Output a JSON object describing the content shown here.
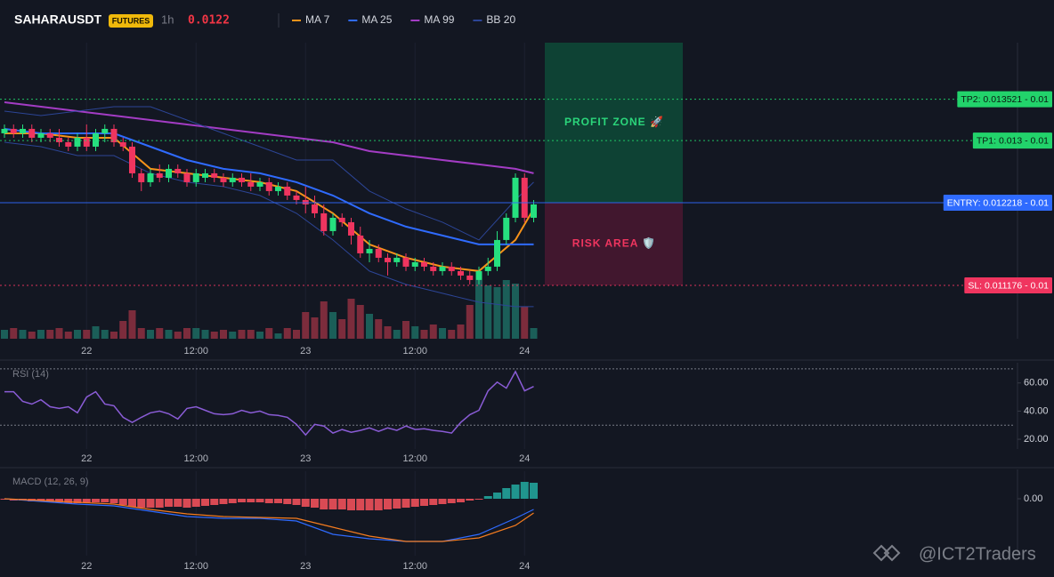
{
  "header": {
    "symbol": "SAHARAUSDT",
    "market": "FUTURES",
    "interval": "1h",
    "price": 0.0122
  },
  "watermark": "@ICT2Traders",
  "chart_data": [
    {
      "type": "candlestick",
      "categories": [
        null,
        null,
        null,
        null,
        null,
        null,
        null,
        null,
        null,
        "22",
        null,
        null,
        null,
        null,
        null,
        null,
        null,
        null,
        null,
        null,
        null,
        "12:00",
        null,
        null,
        null,
        null,
        null,
        null,
        null,
        null,
        null,
        null,
        null,
        "23",
        null,
        null,
        null,
        null,
        null,
        null,
        null,
        null,
        null,
        null,
        null,
        "12:00",
        null,
        null,
        null,
        null,
        null,
        null,
        null,
        null,
        null,
        null,
        null,
        "24",
        null
      ],
      "open": [
        0.013092,
        0.013148,
        0.013092,
        0.013148,
        0.013036,
        0.013092,
        0.013036,
        0.01298,
        0.012924,
        0.013036,
        0.012924,
        0.013092,
        0.013148,
        0.01298,
        0.012924,
        0.012588,
        0.012476,
        0.012588,
        0.012532,
        0.012644,
        0.012588,
        0.012476,
        0.012532,
        0.012588,
        0.012532,
        0.012476,
        0.012532,
        0.012476,
        0.01242,
        0.012476,
        0.012364,
        0.01242,
        0.012308,
        0.012252,
        0.012196,
        0.012084,
        0.01186,
        0.012028,
        0.011972,
        0.011804,
        0.01158,
        0.011636,
        0.011524,
        0.011468,
        0.011524,
        0.011412,
        0.011468,
        0.011412,
        0.011356,
        0.011412,
        0.011356,
        0.0113,
        0.011244,
        0.011356,
        0.011412,
        0.011748,
        0.012028,
        0.012532,
        0.012028
      ],
      "high": [
        0.013204,
        0.013204,
        0.013204,
        0.013204,
        0.013148,
        0.013148,
        0.013148,
        0.013036,
        0.013092,
        0.013204,
        0.013148,
        0.013204,
        0.013204,
        0.013036,
        0.01298,
        0.012644,
        0.012644,
        0.0127,
        0.0127,
        0.0127,
        0.012644,
        0.012644,
        0.012644,
        0.012644,
        0.012588,
        0.012588,
        0.012588,
        0.012588,
        0.012532,
        0.012532,
        0.012476,
        0.012476,
        0.012364,
        0.01242,
        0.012308,
        0.012196,
        0.012084,
        0.012084,
        0.012028,
        0.011916,
        0.011748,
        0.011692,
        0.01158,
        0.01158,
        0.01158,
        0.011524,
        0.011524,
        0.011468,
        0.011468,
        0.011468,
        0.011412,
        0.011356,
        0.011412,
        0.011524,
        0.01186,
        0.012084,
        0.012588,
        0.012588,
        0.012252
      ],
      "low": [
        0.013036,
        0.013036,
        0.013036,
        0.01298,
        0.01298,
        0.01298,
        0.012924,
        0.012868,
        0.012868,
        0.012868,
        0.012868,
        0.01298,
        0.012924,
        0.012868,
        0.012532,
        0.012364,
        0.01242,
        0.012476,
        0.012476,
        0.012532,
        0.01242,
        0.01242,
        0.012476,
        0.012476,
        0.01242,
        0.01242,
        0.01242,
        0.012364,
        0.012364,
        0.012308,
        0.012308,
        0.012252,
        0.012196,
        0.012084,
        0.012028,
        0.011804,
        0.011804,
        0.011916,
        0.011692,
        0.011524,
        0.011468,
        0.011468,
        0.0113,
        0.011412,
        0.011356,
        0.011356,
        0.011356,
        0.0113,
        0.0113,
        0.0113,
        0.011244,
        0.011188,
        0.011188,
        0.0113,
        0.011356,
        0.011692,
        0.011972,
        0.011972,
        0.011972
      ],
      "close": [
        0.013148,
        0.013092,
        0.013148,
        0.013036,
        0.013092,
        0.013036,
        0.01298,
        0.012924,
        0.013036,
        0.012924,
        0.013092,
        0.013148,
        0.01298,
        0.012924,
        0.012588,
        0.012476,
        0.012588,
        0.012532,
        0.012644,
        0.012588,
        0.012476,
        0.012588,
        0.012588,
        0.012532,
        0.012476,
        0.012532,
        0.012476,
        0.01242,
        0.012476,
        0.012364,
        0.01242,
        0.012308,
        0.012252,
        0.012196,
        0.012084,
        0.01186,
        0.012028,
        0.011972,
        0.011804,
        0.01158,
        0.011636,
        0.011524,
        0.011468,
        0.011524,
        0.011412,
        0.011468,
        0.011412,
        0.011356,
        0.011412,
        0.011356,
        0.0113,
        0.011244,
        0.011356,
        0.011412,
        0.011748,
        0.012028,
        0.012532,
        0.012028,
        0.012196
      ],
      "volume": [
        10,
        12,
        10,
        8,
        10,
        10,
        12,
        8,
        10,
        10,
        14,
        10,
        8,
        20,
        32,
        12,
        10,
        12,
        10,
        8,
        12,
        12,
        10,
        8,
        10,
        8,
        10,
        10,
        8,
        12,
        6,
        12,
        10,
        30,
        24,
        42,
        30,
        22,
        45,
        38,
        28,
        22,
        14,
        10,
        20,
        14,
        10,
        16,
        12,
        10,
        16,
        38,
        66,
        60,
        58,
        66,
        62,
        36,
        12
      ],
      "up_color": "#26e07f",
      "down_color": "#f0355f",
      "volume_up_color": "#1b5e58",
      "volume_down_color": "#7c2c3c",
      "ylim": [
        0.010504,
        0.014234
      ],
      "series": [
        {
          "name": "MA 7",
          "color": "#f7931a",
          "x": [
            0,
            4,
            8,
            12,
            16,
            20,
            24,
            28,
            32,
            36,
            40,
            44,
            48,
            52,
            56,
            58
          ],
          "values": [
            0.013092,
            0.013092,
            0.013036,
            0.013036,
            0.012644,
            0.012588,
            0.012532,
            0.012476,
            0.012364,
            0.012084,
            0.011692,
            0.011524,
            0.011412,
            0.011356,
            0.011748,
            0.01214
          ]
        },
        {
          "name": "MA 25",
          "color": "#2f6bff",
          "x": [
            0,
            4,
            8,
            12,
            16,
            20,
            24,
            28,
            32,
            36,
            40,
            44,
            48,
            52,
            56,
            58
          ],
          "values": [
            0.013148,
            0.013092,
            0.013092,
            0.013092,
            0.012924,
            0.012756,
            0.012644,
            0.012588,
            0.012476,
            0.012308,
            0.012084,
            0.011916,
            0.011804,
            0.011692,
            0.011692,
            0.011692
          ]
        },
        {
          "name": "MA 99",
          "color": "#a33cc4",
          "x": [
            0,
            4,
            8,
            12,
            16,
            20,
            24,
            28,
            32,
            36,
            40,
            44,
            48,
            52,
            56,
            58
          ],
          "values": [
            0.013484,
            0.013428,
            0.013372,
            0.013316,
            0.01326,
            0.013204,
            0.013148,
            0.013092,
            0.013036,
            0.01298,
            0.012868,
            0.012812,
            0.012756,
            0.0127,
            0.012644,
            0.012588
          ]
        },
        {
          "name": "BB 20",
          "color": "#2c4596",
          "x": [
            0,
            4,
            8,
            12,
            16,
            20,
            24,
            28,
            32,
            36,
            40,
            44,
            48,
            52,
            56,
            58
          ],
          "values": [
            0.013372,
            0.013316,
            0.013372,
            0.013428,
            0.013428,
            0.01326,
            0.013092,
            0.012924,
            0.012756,
            0.012756,
            0.012364,
            0.01214,
            0.011972,
            0.011748,
            0.012252,
            0.012476
          ],
          "lower": [
            0.01298,
            0.012924,
            0.012812,
            0.012812,
            0.012588,
            0.012476,
            0.01242,
            0.012308,
            0.012084,
            0.011748,
            0.011356,
            0.011188,
            0.011076,
            0.010964,
            0.010908,
            0.010908
          ]
        }
      ],
      "levels": [
        {
          "label": "TP2: 0.013521 - 0.01",
          "value": 0.013521,
          "color": "#22d36b",
          "text_color": "#0b1a12",
          "style": "dotted"
        },
        {
          "label": "TP1: 0.013 - 0.01",
          "value": 0.013,
          "color": "#22d36b",
          "text_color": "#0b1a12",
          "style": "dotted"
        },
        {
          "label": "ENTRY: 0.012218 - 0.01",
          "value": 0.012218,
          "color": "#2f6bff",
          "text_color": "#ffffff",
          "style": "solid"
        },
        {
          "label": "SL: 0.011176 - 0.01",
          "value": 0.011176,
          "color": "#f0355f",
          "text_color": "#ffffff",
          "style": "dotted"
        }
      ],
      "zones": [
        {
          "label": "PROFIT ZONE 🚀",
          "low": 0.012218,
          "high": 0.014234,
          "color": "#0e4a37",
          "text_color": "#2bd67b"
        },
        {
          "label": "RISK AREA 🛡️",
          "low": 0.011176,
          "high": 0.012218,
          "color": "#4a1830",
          "text_color": "#f0355f"
        }
      ]
    },
    {
      "type": "line",
      "title": "RSI (14)",
      "categories": [
        null,
        null,
        null,
        null,
        null,
        null,
        null,
        null,
        null,
        "22",
        null,
        null,
        null,
        null,
        null,
        null,
        null,
        null,
        null,
        null,
        null,
        "12:00",
        null,
        null,
        null,
        null,
        null,
        null,
        null,
        null,
        null,
        null,
        null,
        "23",
        null,
        null,
        null,
        null,
        null,
        null,
        null,
        null,
        null,
        null,
        null,
        "12:00",
        null,
        null,
        null,
        null,
        null,
        null,
        null,
        null,
        null,
        null,
        null,
        "24",
        null
      ],
      "values": [
        53.8,
        53.8,
        46.9,
        45.0,
        48.1,
        43.1,
        41.9,
        43.1,
        38.8,
        50.0,
        53.8,
        45.0,
        43.8,
        35.6,
        31.9,
        35.6,
        38.8,
        40.0,
        38.1,
        34.4,
        41.9,
        43.1,
        40.6,
        38.1,
        37.5,
        38.1,
        40.6,
        38.8,
        40.0,
        37.5,
        36.9,
        35.6,
        30.6,
        23.1,
        30.6,
        29.4,
        24.4,
        26.9,
        25.0,
        26.3,
        28.1,
        25.6,
        28.1,
        26.3,
        29.4,
        26.9,
        27.5,
        26.3,
        25.6,
        24.4,
        31.9,
        37.5,
        40.6,
        54.4,
        60.6,
        56.3,
        68.1,
        54.4,
        57.5
      ],
      "color": "#8a5cd6",
      "ylim": [
        13.1,
        73.1
      ],
      "yticks": [
        {
          "value": 60,
          "label": "60.00"
        },
        {
          "value": 40,
          "label": "40.00"
        },
        {
          "value": 20,
          "label": "20.00"
        }
      ],
      "bands": [
        70,
        30
      ]
    },
    {
      "type": "macd",
      "title": "MACD (12, 26, 9)",
      "categories": [
        null,
        null,
        null,
        null,
        null,
        null,
        null,
        null,
        null,
        "22",
        null,
        null,
        null,
        null,
        null,
        null,
        null,
        null,
        null,
        null,
        null,
        "12:00",
        null,
        null,
        null,
        null,
        null,
        null,
        null,
        null,
        null,
        null,
        null,
        "23",
        null,
        null,
        null,
        null,
        null,
        null,
        null,
        null,
        null,
        null,
        null,
        "12:00",
        null,
        null,
        null,
        null,
        null,
        null,
        null,
        null,
        null,
        null,
        null,
        "24",
        null
      ],
      "values": [
        -4e-06,
        -8e-06,
        -8e-06,
        -1.2e-05,
        -1.2e-05,
        -1.6e-05,
        -1.6e-05,
        -2e-05,
        -2e-05,
        -1.6e-05,
        -1.6e-05,
        -1.6e-05,
        -2e-05,
        -2.8e-05,
        -3.6e-05,
        -4e-05,
        -4e-05,
        -4e-05,
        -3.6e-05,
        -3.6e-05,
        -4e-05,
        -3.6e-05,
        -3.2e-05,
        -2.8e-05,
        -2.4e-05,
        -2e-05,
        -1.6e-05,
        -1.6e-05,
        -1.6e-05,
        -2e-05,
        -2e-05,
        -2.4e-05,
        -2.8e-05,
        -3.6e-05,
        -4e-05,
        -4.8e-05,
        -4.8e-05,
        -4.8e-05,
        -5.2e-05,
        -5.2e-05,
        -5.2e-05,
        -5.2e-05,
        -4.8e-05,
        -4.4e-05,
        -4e-05,
        -3.6e-05,
        -3.2e-05,
        -2.8e-05,
        -2.4e-05,
        -2e-05,
        -1.6e-05,
        -8e-06,
        -4e-06,
        1.2e-05,
        2.8e-05,
        4.8e-05,
        6.4e-05,
        7.6e-05,
        7.2e-05
      ],
      "pos_color": "#22a39a",
      "neg_color": "#f0505a",
      "series": [
        {
          "color": "#2f6bff",
          "x": [
            0,
            4,
            8,
            12,
            16,
            20,
            24,
            28,
            32,
            36,
            40,
            44,
            48,
            52,
            56,
            58
          ],
          "values": [
            0,
            -1.2e-05,
            -2.4e-05,
            -3.2e-05,
            -5.6e-05,
            -8e-05,
            -8.8e-05,
            -8.8e-05,
            -0.0001,
            -0.00016,
            -0.00018,
            -0.000192,
            -0.000192,
            -0.00016,
            -8.8e-05,
            -4.8e-05
          ]
        },
        {
          "color": "#f57c1f",
          "x": [
            0,
            4,
            8,
            12,
            16,
            20,
            24,
            28,
            32,
            36,
            40,
            44,
            48,
            52,
            56,
            58
          ],
          "values": [
            0,
            -8e-06,
            -1.6e-05,
            -2.4e-05,
            -4.8e-05,
            -6.8e-05,
            -8e-05,
            -8.4e-05,
            -8.8e-05,
            -0.000128,
            -0.000168,
            -0.000192,
            -0.000192,
            -0.000176,
            -0.00012,
            -6.4e-05
          ]
        }
      ],
      "ylim": [
        -0.000256,
        0.000124
      ],
      "yticks": [
        {
          "value": 0,
          "label": "0.00"
        }
      ]
    }
  ]
}
